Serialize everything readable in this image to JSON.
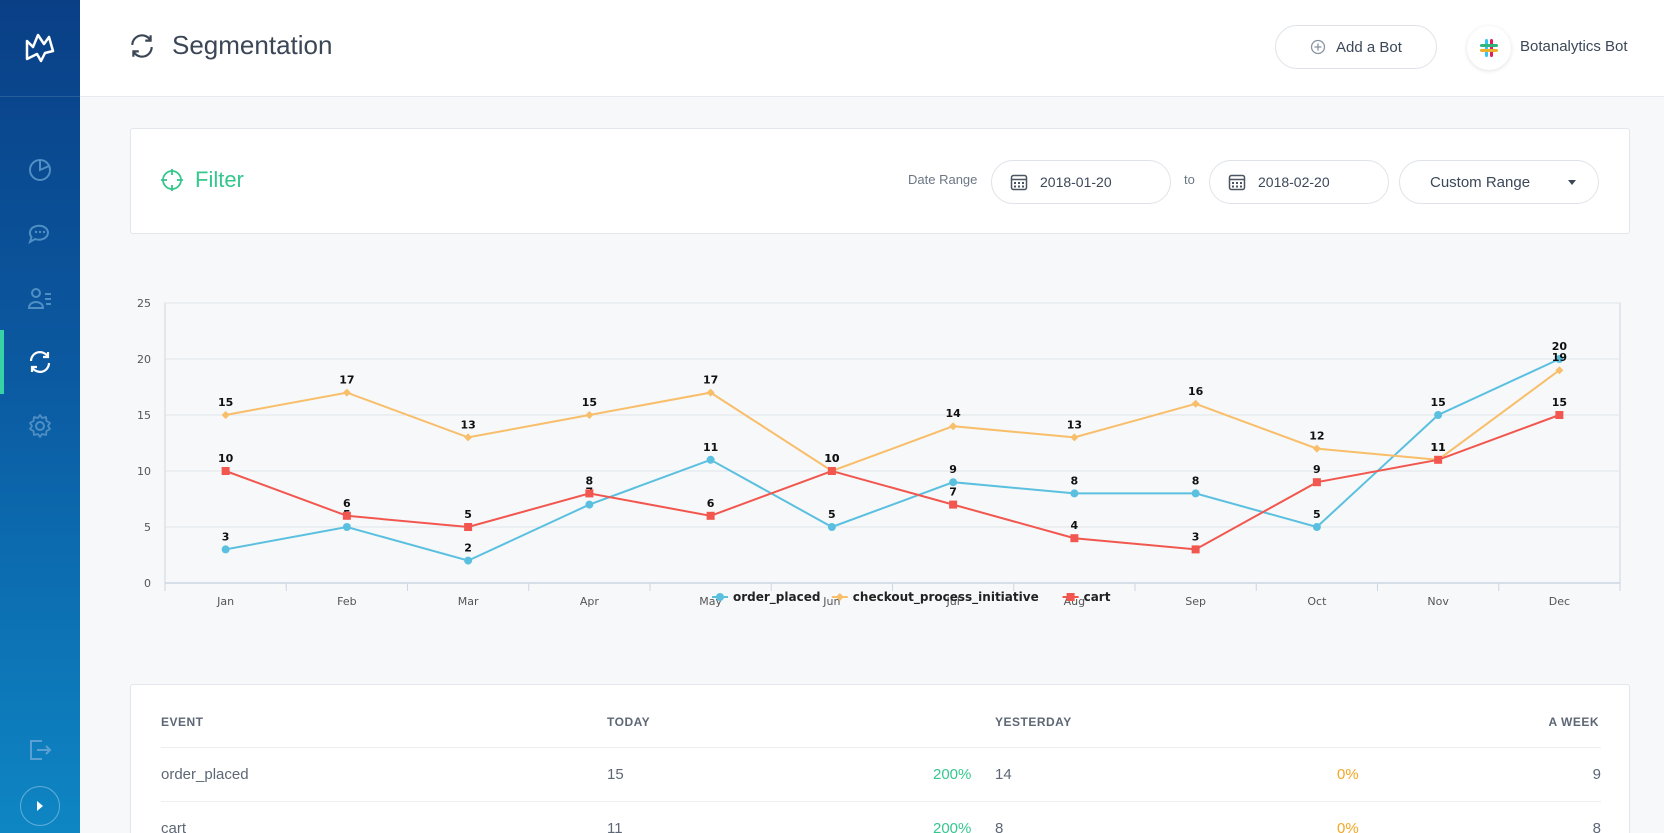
{
  "header": {
    "title": "Segmentation",
    "add_bot_label": "Add a Bot",
    "bot_name": "Botanalytics Bot"
  },
  "sidebar": {
    "items": [
      {
        "name": "dashboard",
        "icon": "pie-chart-icon"
      },
      {
        "name": "conversations",
        "icon": "chat-icon"
      },
      {
        "name": "users",
        "icon": "user-list-icon"
      },
      {
        "name": "segmentation",
        "icon": "refresh-icon",
        "active": true
      },
      {
        "name": "settings",
        "icon": "gear-icon"
      }
    ],
    "accent_color": "#37d3a6"
  },
  "filter": {
    "title": "Filter",
    "date_range_label": "Date Range",
    "start_date": "2018-01-20",
    "to_label": "to",
    "end_date": "2018-02-20",
    "range_option": "Custom Range"
  },
  "chart_data": {
    "type": "line",
    "categories": [
      "Jan",
      "Feb",
      "Mar",
      "Apr",
      "May",
      "Jun",
      "Jul",
      "Aug",
      "Sep",
      "Oct",
      "Nov",
      "Dec"
    ],
    "ylim": [
      0,
      25
    ],
    "yticks": [
      0,
      5,
      10,
      15,
      20,
      25
    ],
    "grid": true,
    "legend": "bottom",
    "series": [
      {
        "name": "order_placed",
        "color": "#5bc0e0",
        "marker": "circle",
        "values": [
          3,
          5,
          2,
          7,
          11,
          5,
          9,
          8,
          8,
          5,
          15,
          20
        ]
      },
      {
        "name": "checkout_process_initiative",
        "color": "#f8be6a",
        "marker": "diamond",
        "values": [
          15,
          17,
          13,
          15,
          17,
          10,
          14,
          13,
          16,
          12,
          11,
          19
        ]
      },
      {
        "name": "cart",
        "color": "#f2574f",
        "marker": "square",
        "values": [
          10,
          6,
          5,
          8,
          6,
          10,
          7,
          4,
          3,
          9,
          11,
          15
        ]
      }
    ]
  },
  "table": {
    "headers": {
      "event": "EVENT",
      "today": "TODAY",
      "yesterday": "YESTERDAY",
      "week": "A WEEK"
    },
    "rows": [
      {
        "event": "order_placed",
        "today": "15",
        "today_pct": "200%",
        "yesterday": "14",
        "yesterday_pct": "0%",
        "week": "9"
      },
      {
        "event": "cart",
        "today": "11",
        "today_pct": "200%",
        "yesterday": "8",
        "yesterday_pct": "0%",
        "week": "8"
      }
    ]
  }
}
